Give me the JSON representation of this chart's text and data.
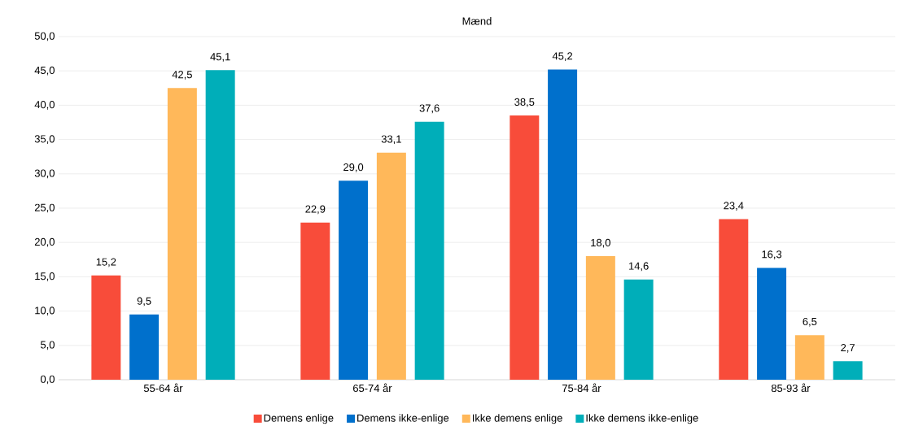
{
  "chart_data": {
    "type": "bar",
    "title": "Mænd",
    "categories": [
      "55-64 år",
      "65-74 år",
      "75-84 år",
      "85-93 år"
    ],
    "series": [
      {
        "name": "Demens enlige",
        "color": "#f84c3a",
        "values": [
          15.2,
          22.9,
          38.5,
          23.4
        ],
        "value_labels": [
          "15,2",
          "22,9",
          "38,5",
          "23,4"
        ]
      },
      {
        "name": "Demens ikke-enlige",
        "color": "#0070cc",
        "values": [
          9.5,
          29.0,
          45.2,
          16.3
        ],
        "value_labels": [
          "9,5",
          "29,0",
          "45,2",
          "16,3"
        ]
      },
      {
        "name": "Ikke demens enlige",
        "color": "#ffb85a",
        "values": [
          42.5,
          33.1,
          18.0,
          6.5
        ],
        "value_labels": [
          "42,5",
          "33,1",
          "18,0",
          "6,5"
        ]
      },
      {
        "name": "Ikke demens ikke-enlige",
        "color": "#00aeb9",
        "values": [
          45.1,
          37.6,
          14.6,
          2.7
        ],
        "value_labels": [
          "45,1",
          "37,6",
          "14,6",
          "2,7"
        ]
      }
    ],
    "ylim": [
      0,
      50
    ],
    "yticks": [
      {
        "value": 0,
        "label": "0,0"
      },
      {
        "value": 5,
        "label": "5,0"
      },
      {
        "value": 10,
        "label": "10,0"
      },
      {
        "value": 15,
        "label": "15,0"
      },
      {
        "value": 20,
        "label": "20,0"
      },
      {
        "value": 25,
        "label": "25,0"
      },
      {
        "value": 30,
        "label": "30,0"
      },
      {
        "value": 35,
        "label": "35,0"
      },
      {
        "value": 40,
        "label": "40,0"
      },
      {
        "value": 45,
        "label": "45,0"
      },
      {
        "value": 50,
        "label": "50,0"
      }
    ],
    "grid": "y",
    "legend": "bottom"
  }
}
